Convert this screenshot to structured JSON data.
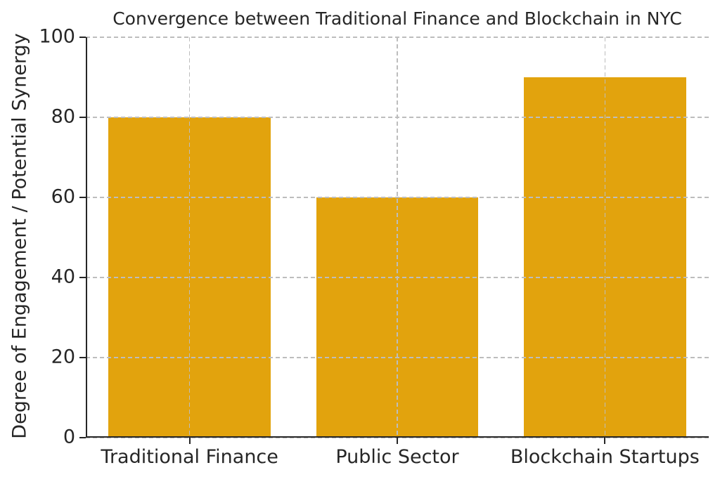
{
  "chart_data": {
    "type": "bar",
    "title": "Convergence between Traditional Finance and Blockchain in NYC",
    "categories": [
      "Traditional Finance",
      "Public Sector",
      "Blockchain Startups"
    ],
    "values": [
      80,
      60,
      90
    ],
    "xlabel": "",
    "ylabel": "Degree of Engagement / Potential Synergy",
    "ylim": [
      0,
      100
    ],
    "yticks": [
      0,
      20,
      40,
      60,
      80,
      100
    ],
    "bar_color": "#E2A30D",
    "bar_width_fraction": 0.78,
    "grid": true,
    "grid_style": "dashed",
    "grid_color": "#bdbdbd",
    "grid_above_bars": true,
    "axis_color": "#262626",
    "text_color": "#262626",
    "background_color": "#ffffff",
    "legend": "none"
  }
}
